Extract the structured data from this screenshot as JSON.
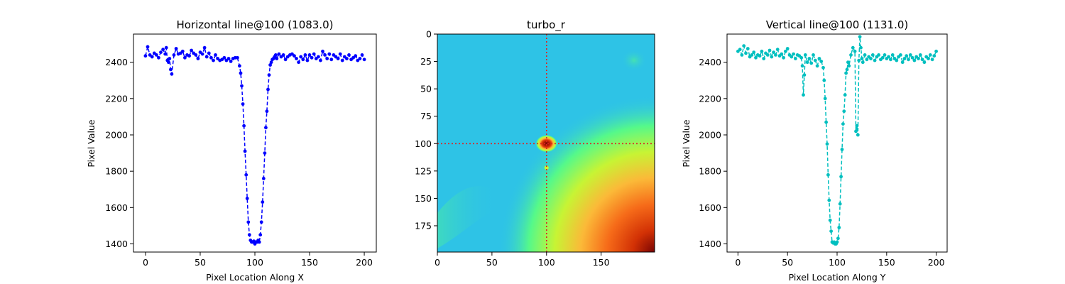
{
  "chart_data": [
    {
      "type": "line",
      "title": "Horizontal line@100 (1083.0)",
      "xlabel": "Pixel Location Along X",
      "ylabel": "Pixel Value",
      "xlim": [
        -11,
        211
      ],
      "ylim": [
        1355,
        2555
      ],
      "xticks": [
        0,
        50,
        100,
        150,
        200
      ],
      "yticks": [
        1400,
        1600,
        1800,
        2000,
        2200,
        2400
      ],
      "color": "#0000ff",
      "line_style": "dashed",
      "marker": "circle",
      "series": [
        {
          "x": [
            0,
            2,
            4,
            6,
            8,
            10,
            12,
            14,
            16,
            18,
            19,
            20,
            21,
            22,
            23,
            24,
            26,
            28,
            30,
            32,
            34,
            36,
            38,
            40,
            42,
            44,
            46,
            48,
            50,
            52,
            54,
            56,
            58,
            60,
            62,
            64,
            66,
            68,
            70,
            72,
            74,
            76,
            78,
            80,
            82,
            84,
            86,
            87,
            88,
            89,
            90,
            91,
            92,
            93,
            94,
            95,
            96,
            97,
            98,
            99,
            100,
            101,
            102,
            103,
            104,
            105,
            106,
            107,
            108,
            109,
            110,
            111,
            112,
            113,
            114,
            115,
            116,
            117,
            118,
            119,
            120,
            122,
            124,
            126,
            128,
            130,
            132,
            134,
            136,
            138,
            140,
            142,
            144,
            146,
            148,
            150,
            152,
            154,
            156,
            158,
            160,
            162,
            164,
            166,
            168,
            170,
            172,
            174,
            176,
            178,
            180,
            182,
            184,
            186,
            188,
            190,
            192,
            194,
            196,
            198,
            200
          ],
          "y": [
            2435,
            2485,
            2440,
            2430,
            2450,
            2440,
            2425,
            2455,
            2470,
            2445,
            2480,
            2410,
            2400,
            2420,
            2360,
            2335,
            2440,
            2475,
            2445,
            2450,
            2460,
            2425,
            2440,
            2435,
            2465,
            2450,
            2440,
            2420,
            2455,
            2445,
            2480,
            2430,
            2450,
            2425,
            2410,
            2440,
            2420,
            2410,
            2415,
            2425,
            2410,
            2420,
            2405,
            2420,
            2425,
            2425,
            2380,
            2340,
            2270,
            2170,
            2050,
            1910,
            1780,
            1650,
            1520,
            1450,
            1420,
            1410,
            1410,
            1415,
            1400,
            1410,
            1410,
            1420,
            1410,
            1450,
            1520,
            1630,
            1760,
            1900,
            2040,
            2130,
            2250,
            2330,
            2385,
            2400,
            2415,
            2420,
            2430,
            2440,
            2420,
            2445,
            2430,
            2440,
            2415,
            2430,
            2440,
            2445,
            2435,
            2420,
            2400,
            2430,
            2415,
            2440,
            2410,
            2440,
            2425,
            2445,
            2420,
            2430,
            2410,
            2460,
            2440,
            2420,
            2445,
            2415,
            2440,
            2430,
            2420,
            2445,
            2410,
            2430,
            2420,
            2440,
            2415,
            2425,
            2435,
            2410,
            2420,
            2440,
            2415
          ]
        }
      ]
    },
    {
      "type": "heatmap",
      "title": "turbo_r",
      "colormap": "turbo_r",
      "xlim": [
        0,
        199
      ],
      "ylim": [
        199,
        0
      ],
      "xticks": [
        0,
        50,
        100,
        150
      ],
      "yticks": [
        0,
        25,
        50,
        75,
        100,
        125,
        150,
        175
      ],
      "crosshair": {
        "x": 100,
        "y": 100,
        "color": "#dd2222",
        "style": "dotted"
      },
      "background_color": "#2ec3e6",
      "features": [
        {
          "kind": "hot-spot",
          "x": 100,
          "y": 100,
          "radius_x": 10,
          "radius_y": 8
        },
        {
          "kind": "small-spot",
          "x": 100,
          "y": 122
        },
        {
          "kind": "warm-corner",
          "x": 199,
          "y": 199
        }
      ]
    },
    {
      "type": "line",
      "title": "Vertical line@100 (1131.0)",
      "xlabel": "Pixel Location Along Y",
      "ylabel": "Pixel Value",
      "xlim": [
        -11,
        211
      ],
      "ylim": [
        1355,
        2555
      ],
      "xticks": [
        0,
        50,
        100,
        150,
        200
      ],
      "yticks": [
        1400,
        1600,
        1800,
        2000,
        2200,
        2400
      ],
      "color": "#00bfbf",
      "line_style": "dashed",
      "marker": "circle",
      "series": [
        {
          "x": [
            0,
            2,
            4,
            6,
            8,
            10,
            12,
            14,
            16,
            18,
            20,
            22,
            24,
            26,
            28,
            30,
            32,
            34,
            36,
            38,
            40,
            42,
            44,
            46,
            48,
            50,
            52,
            54,
            56,
            58,
            60,
            62,
            64,
            65,
            66,
            67,
            68,
            70,
            72,
            74,
            76,
            78,
            80,
            82,
            84,
            86,
            87,
            88,
            89,
            90,
            91,
            92,
            93,
            94,
            95,
            96,
            97,
            98,
            99,
            100,
            101,
            102,
            103,
            104,
            105,
            106,
            107,
            108,
            109,
            110,
            111,
            112,
            114,
            116,
            118,
            119,
            120,
            121,
            122,
            123,
            124,
            125,
            126,
            128,
            130,
            132,
            134,
            136,
            138,
            140,
            142,
            144,
            146,
            148,
            150,
            152,
            154,
            156,
            158,
            160,
            162,
            164,
            166,
            168,
            170,
            172,
            174,
            176,
            178,
            180,
            182,
            184,
            186,
            188,
            190,
            192,
            194,
            196,
            198,
            200
          ],
          "y": [
            2460,
            2470,
            2440,
            2490,
            2450,
            2475,
            2430,
            2440,
            2455,
            2425,
            2440,
            2435,
            2460,
            2420,
            2450,
            2440,
            2465,
            2430,
            2455,
            2440,
            2470,
            2435,
            2445,
            2425,
            2460,
            2475,
            2440,
            2430,
            2445,
            2420,
            2440,
            2435,
            2425,
            2380,
            2220,
            2330,
            2440,
            2400,
            2420,
            2395,
            2440,
            2410,
            2380,
            2420,
            2405,
            2370,
            2300,
            2200,
            2070,
            1950,
            1780,
            1640,
            1530,
            1470,
            1410,
            1405,
            1410,
            1400,
            1400,
            1410,
            1430,
            1490,
            1620,
            1770,
            1920,
            2060,
            2130,
            2220,
            2340,
            2360,
            2400,
            2380,
            2440,
            2480,
            2460,
            2020,
            2050,
            2000,
            2410,
            2540,
            2480,
            2420,
            2400,
            2440,
            2415,
            2430,
            2420,
            2440,
            2410,
            2430,
            2440,
            2415,
            2425,
            2440,
            2420,
            2430,
            2415,
            2440,
            2420,
            2410,
            2430,
            2440,
            2400,
            2420,
            2435,
            2415,
            2440,
            2425,
            2410,
            2430,
            2420,
            2440,
            2415,
            2400,
            2430,
            2420,
            2440,
            2415,
            2435,
            2460
          ]
        }
      ]
    }
  ]
}
